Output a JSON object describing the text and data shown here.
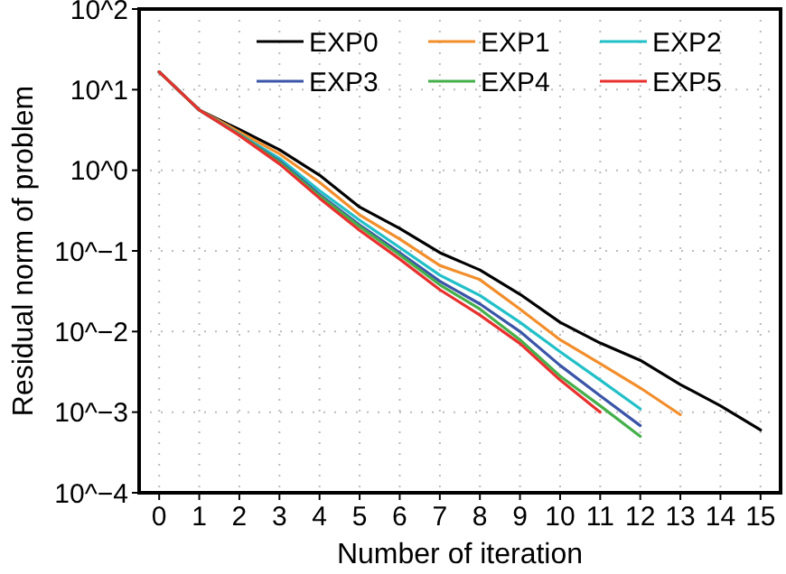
{
  "chart_data": {
    "type": "line",
    "xlabel": "Number of iteration",
    "ylabel": "Residual norm of problem",
    "log": "y",
    "grid": true,
    "legend": "top right",
    "line_style": "solid",
    "marker": "none",
    "xlim": [
      -0.5,
      15.5
    ],
    "xticks": [
      0,
      1,
      2,
      3,
      4,
      5,
      6,
      7,
      8,
      9,
      10,
      11,
      12,
      13,
      14,
      15
    ],
    "ylim": [
      0.0001,
      100
    ],
    "yticks": [
      {
        "value": 0.0001,
        "label": "10^−4"
      },
      {
        "value": 0.001,
        "label": "10^−3"
      },
      {
        "value": 0.01,
        "label": "10^−2"
      },
      {
        "value": 0.1,
        "label": "10^−1"
      },
      {
        "value": 1,
        "label": "10^0"
      },
      {
        "value": 10,
        "label": "10^1"
      },
      {
        "value": 100,
        "label": "10^2"
      }
    ],
    "series": [
      {
        "name": "EXP0",
        "color": "#000000",
        "x": [
          0,
          1,
          2,
          3,
          4,
          5,
          6,
          7,
          8,
          9,
          10,
          11,
          12,
          13,
          14,
          15
        ],
        "values": [
          16.6,
          5.6,
          3.2,
          1.8,
          0.87,
          0.35,
          0.19,
          0.095,
          0.058,
          0.029,
          0.013,
          0.0072,
          0.0044,
          0.0022,
          0.0012,
          0.0006
        ]
      },
      {
        "name": "EXP1",
        "color": "#f28e2b",
        "x": [
          0,
          1,
          2,
          3,
          4,
          5,
          6,
          7,
          8,
          9,
          10,
          11,
          12,
          13
        ],
        "values": [
          16.6,
          5.6,
          3.0,
          1.6,
          0.71,
          0.28,
          0.14,
          0.066,
          0.044,
          0.019,
          0.0079,
          0.004,
          0.002,
          0.00093
        ]
      },
      {
        "name": "EXP2",
        "color": "#22c0c8",
        "x": [
          0,
          1,
          2,
          3,
          4,
          5,
          6,
          7,
          8,
          9,
          10,
          11,
          12
        ],
        "values": [
          16.6,
          5.6,
          2.8,
          1.4,
          0.56,
          0.24,
          0.11,
          0.05,
          0.028,
          0.013,
          0.0056,
          0.0025,
          0.0011
        ]
      },
      {
        "name": "EXP3",
        "color": "#3a55a8",
        "x": [
          0,
          1,
          2,
          3,
          4,
          5,
          6,
          7,
          8,
          9,
          10,
          11,
          12
        ],
        "values": [
          16.6,
          5.6,
          2.75,
          1.3,
          0.5,
          0.21,
          0.095,
          0.042,
          0.022,
          0.01,
          0.0038,
          0.0016,
          0.00068
        ]
      },
      {
        "name": "EXP4",
        "color": "#44b04a",
        "x": [
          0,
          1,
          2,
          3,
          4,
          5,
          6,
          7,
          8,
          9,
          10,
          11,
          12
        ],
        "values": [
          16.6,
          5.6,
          2.75,
          1.26,
          0.48,
          0.2,
          0.089,
          0.038,
          0.019,
          0.0079,
          0.0028,
          0.0012,
          0.0005
        ]
      },
      {
        "name": "EXP5",
        "color": "#e8302e",
        "x": [
          0,
          1,
          2,
          3,
          4,
          5,
          6,
          7,
          8,
          9,
          10,
          11
        ],
        "values": [
          16.6,
          5.6,
          2.7,
          1.2,
          0.45,
          0.18,
          0.079,
          0.033,
          0.016,
          0.0071,
          0.0025,
          0.001
        ]
      }
    ]
  }
}
